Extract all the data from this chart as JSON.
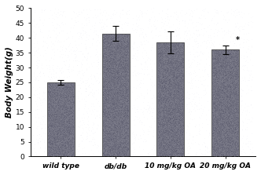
{
  "categories": [
    "wild type",
    "db/db",
    "10 mg/kg OA",
    "20 mg/kg OA"
  ],
  "values": [
    25.0,
    41.5,
    38.5,
    36.0
  ],
  "errors": [
    0.8,
    2.5,
    3.8,
    1.5
  ],
  "bar_color": "#7a7a88",
  "bar_edgecolor": "#444444",
  "ylabel": "Body Weight(g)",
  "ylim": [
    0,
    50
  ],
  "yticks": [
    0,
    5,
    10,
    15,
    20,
    25,
    30,
    35,
    40,
    45,
    50
  ],
  "star_annotation": "*",
  "star_bar_index": 3,
  "background_color": "#ffffff",
  "plot_bg_color": "#ffffff",
  "bar_width": 0.5,
  "label_fontsize": 7.5,
  "tick_fontsize": 6.5,
  "xticklabel_fontsize": 6.5
}
